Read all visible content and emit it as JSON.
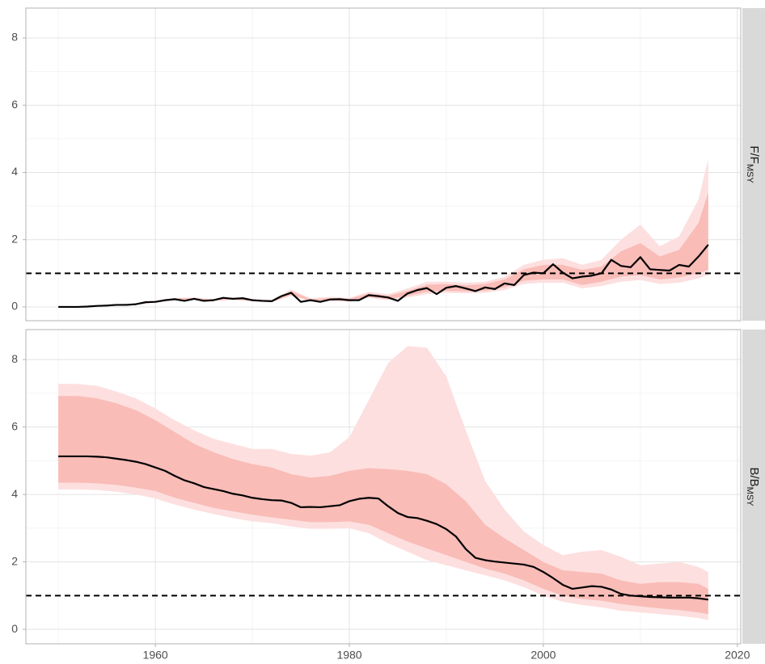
{
  "chart_data": [
    {
      "type": "line",
      "facet_label": {
        "main": "F/F",
        "sub": "MSY"
      },
      "xlim": [
        1946.65,
        2020.35
      ],
      "xticks": [
        1960,
        1980,
        2000,
        2020
      ],
      "x_minor_grid": [
        1950,
        1970,
        1990,
        2010
      ],
      "x_tick_labels": false,
      "ylim": [
        -0.41,
        8.89
      ],
      "yticks": [
        0,
        2,
        4,
        6,
        8
      ],
      "y_minor_grid": [
        1,
        3,
        5,
        7
      ],
      "hline": 1,
      "line_color": "#000000",
      "x": [
        1950,
        1951,
        1952,
        1953,
        1954,
        1955,
        1956,
        1957,
        1958,
        1959,
        1960,
        1961,
        1962,
        1963,
        1964,
        1965,
        1966,
        1967,
        1968,
        1969,
        1970,
        1971,
        1972,
        1973,
        1974,
        1975,
        1976,
        1977,
        1978,
        1979,
        1980,
        1981,
        1982,
        1983,
        1984,
        1985,
        1986,
        1987,
        1988,
        1989,
        1990,
        1991,
        1992,
        1993,
        1994,
        1995,
        1996,
        1997,
        1998,
        1999,
        2000,
        2001,
        2002,
        2003,
        2004,
        2005,
        2006,
        2007,
        2008,
        2009,
        2010,
        2011,
        2012,
        2013,
        2014,
        2015,
        2016,
        2017
      ],
      "values": [
        0,
        0,
        0,
        0.01,
        0.03,
        0.04,
        0.06,
        0.06,
        0.08,
        0.14,
        0.15,
        0.2,
        0.23,
        0.18,
        0.24,
        0.18,
        0.2,
        0.27,
        0.24,
        0.26,
        0.2,
        0.18,
        0.17,
        0.32,
        0.42,
        0.15,
        0.2,
        0.15,
        0.22,
        0.23,
        0.2,
        0.2,
        0.35,
        0.32,
        0.28,
        0.18,
        0.4,
        0.5,
        0.56,
        0.38,
        0.57,
        0.62,
        0.55,
        0.47,
        0.58,
        0.53,
        0.7,
        0.65,
        0.95,
        1.02,
        1.0,
        1.27,
        1.02,
        0.85,
        0.9,
        0.93,
        1.0,
        1.4,
        1.22,
        1.18,
        1.48,
        1.12,
        1.1,
        1.08,
        1.25,
        1.2,
        1.5,
        1.85
      ],
      "bands": [
        {
          "color": "#fddfdf",
          "x": [
            1950,
            1952,
            1954,
            1956,
            1958,
            1960,
            1962,
            1964,
            1966,
            1968,
            1970,
            1972,
            1974,
            1976,
            1978,
            1980,
            1982,
            1984,
            1986,
            1988,
            1990,
            1992,
            1994,
            1996,
            1998,
            2000,
            2002,
            2004,
            2006,
            2008,
            2010,
            2012,
            2014,
            2016,
            2017
          ],
          "lower": [
            0,
            0,
            0.02,
            0.05,
            0.07,
            0.13,
            0.2,
            0.21,
            0.18,
            0.21,
            0.17,
            0.14,
            0.33,
            0.16,
            0.18,
            0.15,
            0.27,
            0.2,
            0.28,
            0.38,
            0.42,
            0.4,
            0.42,
            0.5,
            0.68,
            0.72,
            0.72,
            0.55,
            0.62,
            0.75,
            0.8,
            0.68,
            0.72,
            0.85,
            0.95
          ],
          "upper": [
            0,
            0.01,
            0.05,
            0.08,
            0.11,
            0.18,
            0.27,
            0.28,
            0.24,
            0.29,
            0.24,
            0.21,
            0.52,
            0.26,
            0.3,
            0.27,
            0.45,
            0.38,
            0.55,
            0.75,
            0.75,
            0.72,
            0.75,
            0.9,
            1.25,
            1.4,
            1.45,
            1.25,
            1.4,
            2.0,
            2.45,
            1.8,
            2.1,
            3.2,
            4.4
          ]
        },
        {
          "color": "#f9bcb7",
          "x": [
            1950,
            1952,
            1954,
            1956,
            1958,
            1960,
            1962,
            1964,
            1966,
            1968,
            1970,
            1972,
            1974,
            1976,
            1978,
            1980,
            1982,
            1984,
            1986,
            1988,
            1990,
            1992,
            1994,
            1996,
            1998,
            2000,
            2002,
            2004,
            2006,
            2008,
            2010,
            2012,
            2014,
            2016,
            2017
          ],
          "lower": [
            0,
            0,
            0.03,
            0.05,
            0.07,
            0.14,
            0.21,
            0.22,
            0.19,
            0.22,
            0.18,
            0.15,
            0.36,
            0.18,
            0.2,
            0.17,
            0.3,
            0.23,
            0.33,
            0.45,
            0.48,
            0.46,
            0.48,
            0.58,
            0.78,
            0.82,
            0.82,
            0.65,
            0.75,
            0.9,
            0.95,
            0.82,
            0.88,
            1.0,
            1.1
          ],
          "upper": [
            0,
            0.01,
            0.04,
            0.07,
            0.1,
            0.17,
            0.25,
            0.26,
            0.22,
            0.27,
            0.22,
            0.19,
            0.47,
            0.23,
            0.26,
            0.24,
            0.4,
            0.33,
            0.48,
            0.66,
            0.68,
            0.64,
            0.68,
            0.82,
            1.12,
            1.25,
            1.25,
            1.1,
            1.2,
            1.65,
            1.9,
            1.5,
            1.7,
            2.5,
            3.4
          ]
        }
      ]
    },
    {
      "type": "line",
      "facet_label": {
        "main": "B/B",
        "sub": "MSY"
      },
      "xlim": [
        1946.65,
        2020.35
      ],
      "xticks": [
        1960,
        1980,
        2000,
        2020
      ],
      "x_minor_grid": [
        1950,
        1970,
        1990,
        2010
      ],
      "x_tick_labels": true,
      "ylim": [
        -0.43,
        8.89
      ],
      "yticks": [
        0,
        2,
        4,
        6,
        8
      ],
      "y_minor_grid": [
        1,
        3,
        5,
        7
      ],
      "hline": 1,
      "line_color": "#000000",
      "x": [
        1950,
        1951,
        1952,
        1953,
        1954,
        1955,
        1956,
        1957,
        1958,
        1959,
        1960,
        1961,
        1962,
        1963,
        1964,
        1965,
        1966,
        1967,
        1968,
        1969,
        1970,
        1971,
        1972,
        1973,
        1974,
        1975,
        1976,
        1977,
        1978,
        1979,
        1980,
        1981,
        1982,
        1983,
        1984,
        1985,
        1986,
        1987,
        1988,
        1989,
        1990,
        1991,
        1992,
        1993,
        1994,
        1995,
        1996,
        1997,
        1998,
        1999,
        2000,
        2001,
        2002,
        2003,
        2004,
        2005,
        2006,
        2007,
        2008,
        2009,
        2010,
        2011,
        2012,
        2013,
        2014,
        2015,
        2016,
        2017
      ],
      "values": [
        5.13,
        5.13,
        5.13,
        5.13,
        5.12,
        5.1,
        5.06,
        5.02,
        4.97,
        4.9,
        4.8,
        4.7,
        4.55,
        4.42,
        4.33,
        4.22,
        4.16,
        4.1,
        4.02,
        3.97,
        3.9,
        3.86,
        3.83,
        3.82,
        3.75,
        3.62,
        3.63,
        3.62,
        3.65,
        3.68,
        3.8,
        3.87,
        3.9,
        3.88,
        3.65,
        3.45,
        3.33,
        3.3,
        3.22,
        3.12,
        2.97,
        2.75,
        2.38,
        2.12,
        2.05,
        2.01,
        1.98,
        1.95,
        1.92,
        1.85,
        1.7,
        1.52,
        1.32,
        1.2,
        1.24,
        1.28,
        1.26,
        1.18,
        1.05,
        1.0,
        0.98,
        0.96,
        0.95,
        0.94,
        0.94,
        0.94,
        0.92,
        0.88
      ],
      "bands": [
        {
          "color": "#fddfdf",
          "x": [
            1950,
            1952,
            1954,
            1956,
            1958,
            1960,
            1962,
            1964,
            1966,
            1968,
            1970,
            1972,
            1974,
            1976,
            1978,
            1980,
            1982,
            1984,
            1986,
            1988,
            1990,
            1992,
            1994,
            1996,
            1998,
            2000,
            2002,
            2004,
            2006,
            2008,
            2010,
            2012,
            2014,
            2016,
            2017
          ],
          "lower": [
            4.15,
            4.15,
            4.13,
            4.08,
            4.0,
            3.88,
            3.7,
            3.55,
            3.42,
            3.3,
            3.2,
            3.15,
            3.05,
            2.98,
            2.98,
            3.0,
            2.85,
            2.55,
            2.3,
            2.05,
            1.9,
            1.75,
            1.6,
            1.45,
            1.25,
            1.0,
            0.82,
            0.72,
            0.65,
            0.55,
            0.5,
            0.45,
            0.4,
            0.33,
            0.27
          ],
          "upper": [
            7.28,
            7.28,
            7.22,
            7.05,
            6.85,
            6.55,
            6.2,
            5.9,
            5.65,
            5.5,
            5.35,
            5.35,
            5.2,
            5.15,
            5.25,
            5.7,
            6.8,
            7.9,
            8.4,
            8.35,
            7.5,
            5.9,
            4.4,
            3.55,
            2.9,
            2.5,
            2.2,
            2.3,
            2.35,
            2.15,
            1.9,
            1.95,
            2.0,
            1.85,
            1.7
          ]
        },
        {
          "color": "#f9bcb7",
          "x": [
            1950,
            1952,
            1954,
            1956,
            1958,
            1960,
            1962,
            1964,
            1966,
            1968,
            1970,
            1972,
            1974,
            1976,
            1978,
            1980,
            1982,
            1984,
            1986,
            1988,
            1990,
            1992,
            1994,
            1996,
            1998,
            2000,
            2002,
            2004,
            2006,
            2008,
            2010,
            2012,
            2014,
            2016,
            2017
          ],
          "lower": [
            4.35,
            4.35,
            4.33,
            4.28,
            4.2,
            4.1,
            3.9,
            3.75,
            3.6,
            3.5,
            3.4,
            3.32,
            3.25,
            3.18,
            3.18,
            3.2,
            3.1,
            2.85,
            2.6,
            2.4,
            2.2,
            2.0,
            1.8,
            1.65,
            1.45,
            1.2,
            1.0,
            0.9,
            0.85,
            0.75,
            0.68,
            0.62,
            0.57,
            0.5,
            0.45
          ],
          "upper": [
            6.92,
            6.92,
            6.85,
            6.7,
            6.5,
            6.2,
            5.85,
            5.5,
            5.25,
            5.05,
            4.9,
            4.8,
            4.6,
            4.5,
            4.55,
            4.7,
            4.78,
            4.75,
            4.7,
            4.6,
            4.3,
            3.8,
            3.1,
            2.7,
            2.35,
            2.0,
            1.75,
            1.7,
            1.65,
            1.45,
            1.35,
            1.4,
            1.4,
            1.35,
            1.2
          ]
        }
      ]
    }
  ]
}
